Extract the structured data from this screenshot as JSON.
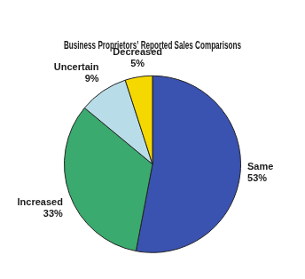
{
  "chart_data": {
    "type": "pie",
    "title": "Business Proprietors’ Reported Sales Comparisons",
    "categories": [
      "Same",
      "Increased",
      "Uncertain",
      "Decreased"
    ],
    "values": [
      53,
      33,
      9,
      5
    ],
    "value_labels": [
      "53%",
      "33%",
      "9%",
      "5%"
    ],
    "colors": [
      "#3a52b0",
      "#3aaa6e",
      "#b8dde8",
      "#f5d800"
    ],
    "data_labels": true,
    "legend": false
  }
}
